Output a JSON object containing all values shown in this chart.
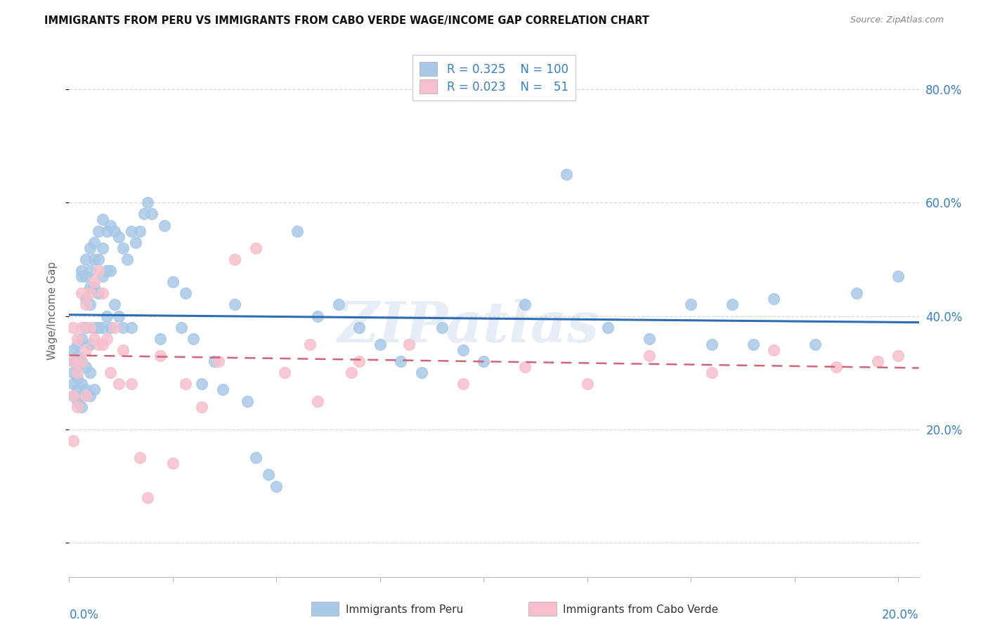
{
  "title": "IMMIGRANTS FROM PERU VS IMMIGRANTS FROM CABO VERDE WAGE/INCOME GAP CORRELATION CHART",
  "source": "Source: ZipAtlas.com",
  "ylabel": "Wage/Income Gap",
  "right_yticklabels": [
    "20.0%",
    "40.0%",
    "60.0%",
    "80.0%"
  ],
  "right_ytick_vals": [
    0.2,
    0.4,
    0.6,
    0.8
  ],
  "legend_peru_R": "0.325",
  "legend_peru_N": "100",
  "legend_cabo_R": "0.023",
  "legend_cabo_N": "51",
  "legend_label_peru": "Immigrants from Peru",
  "legend_label_cabo": "Immigrants from Cabo Verde",
  "watermark": "ZIPatlas",
  "peru_dot_color": "#a8c8e8",
  "cabo_dot_color": "#f7bfcc",
  "trend_peru_color": "#2e6db4",
  "trend_cabo_color": "#d4637a",
  "background_color": "#ffffff",
  "grid_color": "#d8d8d8",
  "xmin": 0.0,
  "xmax": 0.205,
  "ymin": -0.06,
  "ymax": 0.88,
  "peru_x": [
    0.001,
    0.001,
    0.001,
    0.001,
    0.001,
    0.002,
    0.002,
    0.002,
    0.002,
    0.002,
    0.002,
    0.003,
    0.003,
    0.003,
    0.003,
    0.003,
    0.003,
    0.003,
    0.004,
    0.004,
    0.004,
    0.004,
    0.004,
    0.004,
    0.005,
    0.005,
    0.005,
    0.005,
    0.005,
    0.005,
    0.005,
    0.006,
    0.006,
    0.006,
    0.006,
    0.006,
    0.007,
    0.007,
    0.007,
    0.007,
    0.008,
    0.008,
    0.008,
    0.008,
    0.009,
    0.009,
    0.009,
    0.01,
    0.01,
    0.01,
    0.011,
    0.011,
    0.012,
    0.012,
    0.013,
    0.013,
    0.014,
    0.015,
    0.015,
    0.016,
    0.017,
    0.018,
    0.019,
    0.02,
    0.022,
    0.023,
    0.025,
    0.027,
    0.028,
    0.03,
    0.032,
    0.035,
    0.037,
    0.04,
    0.043,
    0.045,
    0.048,
    0.05,
    0.055,
    0.06,
    0.065,
    0.07,
    0.075,
    0.08,
    0.085,
    0.09,
    0.095,
    0.1,
    0.11,
    0.12,
    0.13,
    0.14,
    0.15,
    0.155,
    0.16,
    0.165,
    0.17,
    0.18,
    0.19,
    0.2
  ],
  "peru_y": [
    0.3,
    0.28,
    0.32,
    0.26,
    0.34,
    0.35,
    0.29,
    0.31,
    0.27,
    0.33,
    0.25,
    0.48,
    0.47,
    0.36,
    0.32,
    0.28,
    0.26,
    0.24,
    0.5,
    0.47,
    0.43,
    0.38,
    0.31,
    0.27,
    0.52,
    0.48,
    0.45,
    0.42,
    0.35,
    0.3,
    0.26,
    0.53,
    0.5,
    0.45,
    0.38,
    0.27,
    0.55,
    0.5,
    0.44,
    0.38,
    0.57,
    0.52,
    0.47,
    0.38,
    0.55,
    0.48,
    0.4,
    0.56,
    0.48,
    0.38,
    0.55,
    0.42,
    0.54,
    0.4,
    0.52,
    0.38,
    0.5,
    0.55,
    0.38,
    0.53,
    0.55,
    0.58,
    0.6,
    0.58,
    0.36,
    0.56,
    0.46,
    0.38,
    0.44,
    0.36,
    0.28,
    0.32,
    0.27,
    0.42,
    0.25,
    0.15,
    0.12,
    0.1,
    0.55,
    0.4,
    0.42,
    0.38,
    0.35,
    0.32,
    0.3,
    0.38,
    0.34,
    0.32,
    0.42,
    0.65,
    0.38,
    0.36,
    0.42,
    0.35,
    0.42,
    0.35,
    0.43,
    0.35,
    0.44,
    0.47
  ],
  "cabo_x": [
    0.001,
    0.001,
    0.001,
    0.001,
    0.002,
    0.002,
    0.002,
    0.003,
    0.003,
    0.003,
    0.004,
    0.004,
    0.004,
    0.005,
    0.005,
    0.006,
    0.006,
    0.007,
    0.007,
    0.008,
    0.008,
    0.009,
    0.01,
    0.011,
    0.012,
    0.013,
    0.015,
    0.017,
    0.019,
    0.022,
    0.025,
    0.028,
    0.032,
    0.036,
    0.04,
    0.045,
    0.052,
    0.06,
    0.07,
    0.082,
    0.095,
    0.11,
    0.125,
    0.14,
    0.155,
    0.17,
    0.185,
    0.195,
    0.2,
    0.058,
    0.068
  ],
  "cabo_y": [
    0.38,
    0.32,
    0.26,
    0.18,
    0.36,
    0.3,
    0.24,
    0.44,
    0.38,
    0.32,
    0.42,
    0.34,
    0.26,
    0.44,
    0.38,
    0.46,
    0.36,
    0.48,
    0.35,
    0.44,
    0.35,
    0.36,
    0.3,
    0.38,
    0.28,
    0.34,
    0.28,
    0.15,
    0.08,
    0.33,
    0.14,
    0.28,
    0.24,
    0.32,
    0.5,
    0.52,
    0.3,
    0.25,
    0.32,
    0.35,
    0.28,
    0.31,
    0.28,
    0.33,
    0.3,
    0.34,
    0.31,
    0.32,
    0.33,
    0.35,
    0.3
  ]
}
